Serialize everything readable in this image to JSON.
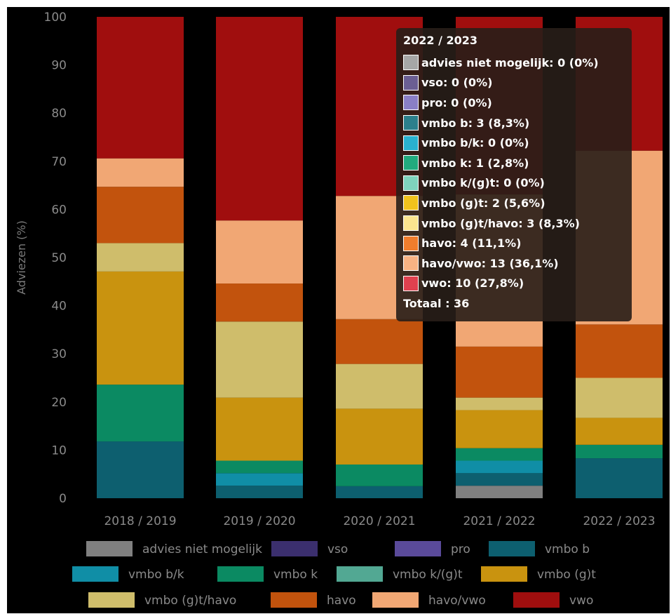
{
  "chart_data": {
    "type": "bar",
    "stacked": true,
    "ylabel": "Adviezen (%)",
    "ylim": [
      0,
      100
    ],
    "yticks": [
      0,
      10,
      20,
      30,
      40,
      50,
      60,
      70,
      80,
      90,
      100
    ],
    "categories": [
      "2018 / 2019",
      "2019 / 2020",
      "2020 / 2021",
      "2021 / 2022",
      "2022 / 2023"
    ],
    "series": [
      {
        "name": "advies niet mogelijk",
        "color": "#808080",
        "values": [
          0,
          0,
          0,
          2.6,
          0
        ]
      },
      {
        "name": "vso",
        "color": "#3b2f6e",
        "values": [
          0,
          0,
          0,
          0,
          0
        ]
      },
      {
        "name": "pro",
        "color": "#5a4a9a",
        "values": [
          0,
          0,
          0,
          0,
          0
        ]
      },
      {
        "name": "vmbo b",
        "color": "#0d5f6f",
        "values": [
          11.8,
          2.6,
          2.5,
          2.6,
          8.3
        ]
      },
      {
        "name": "vmbo b/k",
        "color": "#108ea6",
        "values": [
          0,
          2.6,
          0,
          2.6,
          0
        ]
      },
      {
        "name": "vmbo k",
        "color": "#0b8a62",
        "values": [
          11.8,
          2.6,
          4.5,
          2.6,
          2.8
        ]
      },
      {
        "name": "vmbo k/(g)t",
        "color": "#52a893",
        "values": [
          0,
          0,
          0,
          0,
          0
        ]
      },
      {
        "name": "vmbo (g)t",
        "color": "#c9930f",
        "values": [
          23.5,
          13.1,
          11.6,
          7.9,
          5.6
        ]
      },
      {
        "name": "vmbo (g)t/havo",
        "color": "#cfbd6b",
        "values": [
          5.9,
          15.8,
          9.3,
          2.6,
          8.3
        ]
      },
      {
        "name": "havo",
        "color": "#c2530d",
        "values": [
          11.7,
          7.9,
          9.3,
          10.6,
          11.1
        ]
      },
      {
        "name": "havo/vwo",
        "color": "#f1a774",
        "values": [
          5.9,
          13.1,
          25.6,
          31.6,
          36.1
        ]
      },
      {
        "name": "vwo",
        "color": "#a00e0e",
        "values": [
          29.4,
          42.3,
          37.2,
          36.9,
          27.8
        ]
      }
    ],
    "legend_position": "bottom",
    "grid": false,
    "tooltip": {
      "title": "2022 / 2023",
      "rows": [
        {
          "text": "advies niet mogelijk: 0 (0%)",
          "color": "#a6a6a6"
        },
        {
          "text": "vso: 0 (0%)",
          "color": "#6b5e93"
        },
        {
          "text": "pro: 0 (0%)",
          "color": "#8a7fc6"
        },
        {
          "text": "vmbo b: 3 (8,3%)",
          "color": "#2c7f8c"
        },
        {
          "text": "vmbo b/k: 0 (0%)",
          "color": "#2ab1cf"
        },
        {
          "text": "vmbo k: 1 (2,8%)",
          "color": "#22aa7e"
        },
        {
          "text": "vmbo k/(g)t: 0 (0%)",
          "color": "#7fd3bd"
        },
        {
          "text": "vmbo (g)t: 2 (5,6%)",
          "color": "#f1c21d"
        },
        {
          "text": "vmbo (g)t/havo: 3 (8,3%)",
          "color": "#fbe48f"
        },
        {
          "text": "havo: 4 (11,1%)",
          "color": "#f07d2d"
        },
        {
          "text": "havo/vwo: 13 (36,1%)",
          "color": "#f8b283"
        },
        {
          "text": "vwo: 10 (27,8%)",
          "color": "#e0414f"
        }
      ],
      "total": "Totaal : 36"
    }
  }
}
